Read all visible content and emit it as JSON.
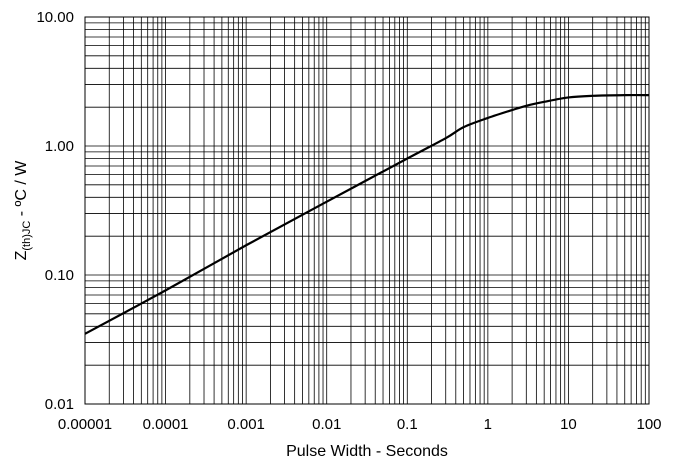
{
  "chart_data": {
    "type": "line",
    "title": "",
    "xlabel": "Pulse Width - Seconds",
    "ylabel": {
      "main": "Z",
      "subscript": "(th)JC",
      "rest": " - ºC / W"
    },
    "xscale": "log",
    "yscale": "log",
    "xlim": [
      1e-05,
      100
    ],
    "ylim": [
      0.01,
      10
    ],
    "x_ticks": [
      "0.00001",
      "0.0001",
      "0.001",
      "0.01",
      "0.1",
      "1",
      "10",
      "100"
    ],
    "y_ticks": [
      "0.01",
      "0.10",
      "1.00",
      "10.00"
    ],
    "grid": true,
    "legend": "none",
    "series": [
      {
        "color": "#000000",
        "x": [
          1e-05,
          0.0001,
          0.001,
          0.01,
          0.1,
          0.3,
          0.5,
          1,
          2,
          3,
          5,
          10,
          20,
          50,
          100
        ],
        "y": [
          0.035,
          0.076,
          0.17,
          0.37,
          0.8,
          1.15,
          1.4,
          1.65,
          1.9,
          2.05,
          2.2,
          2.38,
          2.45,
          2.48,
          2.48
        ]
      }
    ]
  }
}
